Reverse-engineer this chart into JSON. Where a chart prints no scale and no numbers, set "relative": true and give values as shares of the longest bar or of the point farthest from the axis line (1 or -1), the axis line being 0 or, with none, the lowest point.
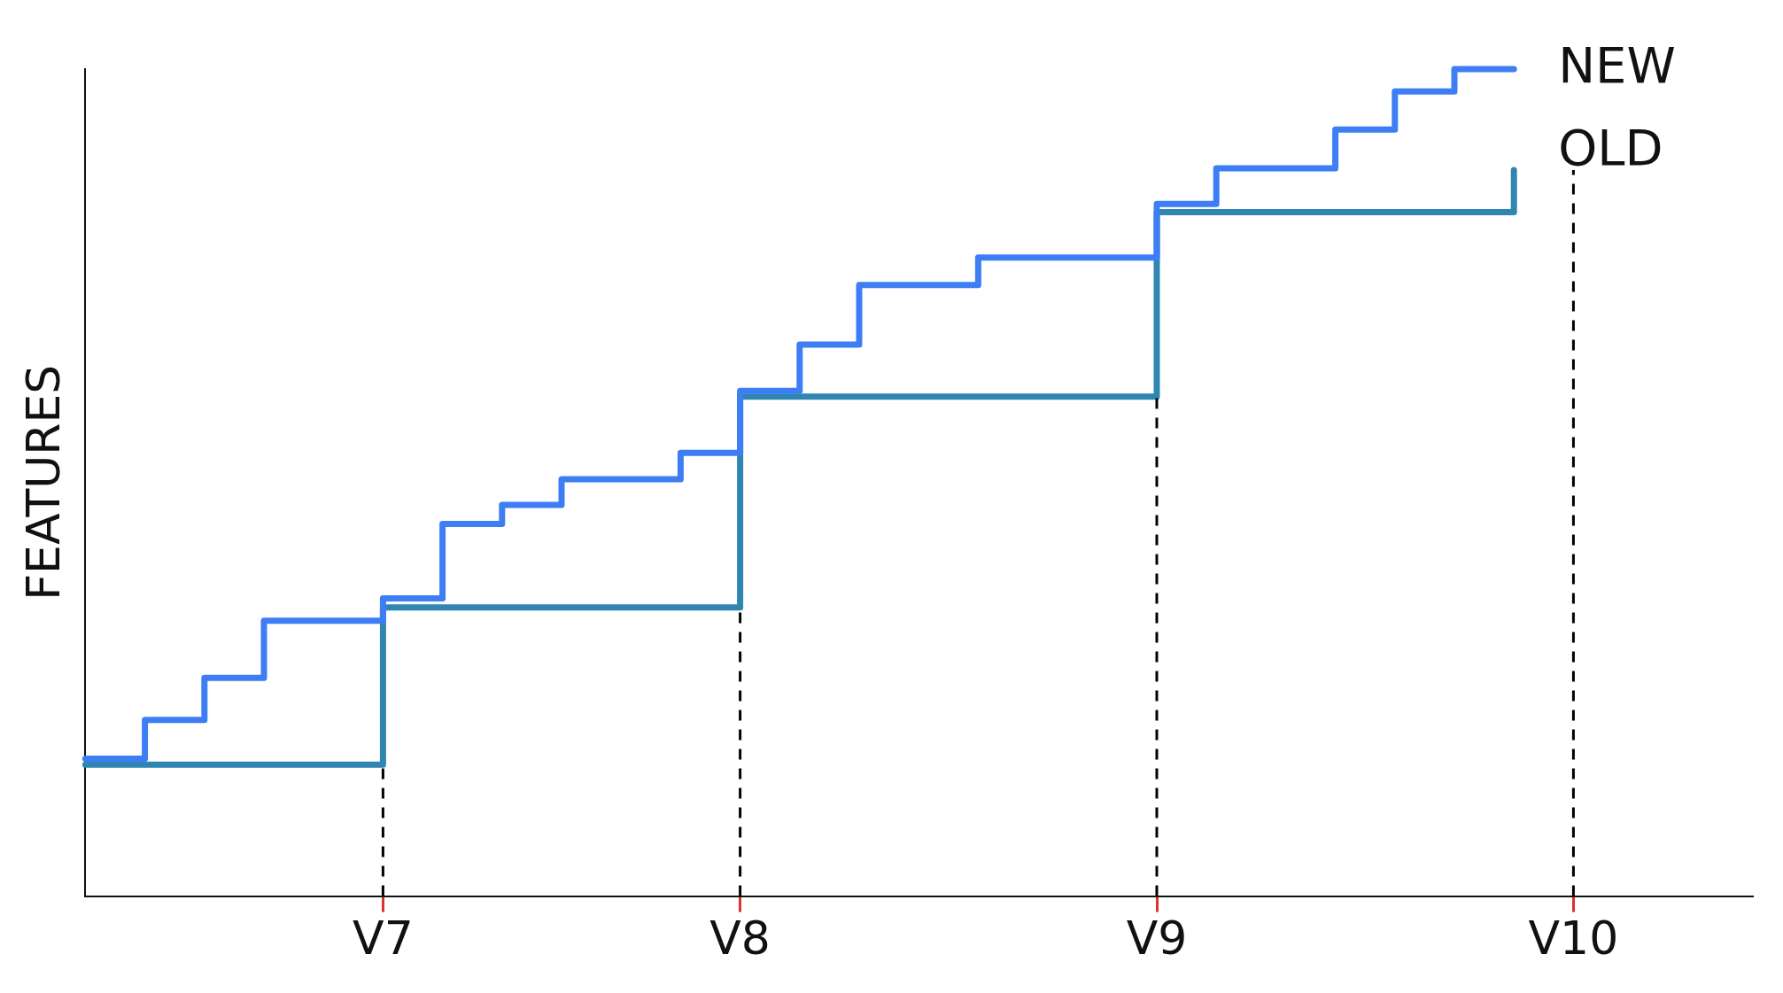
{
  "chart_data": {
    "type": "step",
    "relative": true,
    "ylabel": "FEATURES",
    "categories": [
      null,
      null,
      null,
      null,
      null,
      "V7",
      null,
      null,
      null,
      null,
      null,
      "V8",
      null,
      null,
      null,
      null,
      null,
      null,
      "V9",
      null,
      null,
      null,
      null,
      null,
      null,
      "V10",
      null,
      null,
      null
    ],
    "series": [
      {
        "name": "NEW",
        "color": "#3d7ef5",
        "values": [
          0.166,
          0.213,
          0.264,
          0.333,
          0.333,
          0.36,
          0.45,
          0.473,
          0.504,
          0.504,
          0.536,
          0.611,
          0.667,
          0.739,
          0.739,
          0.772,
          0.772,
          0.772,
          0.837,
          0.88,
          0.88,
          0.927,
          0.973,
          1,
          1,
          null,
          null,
          null,
          null
        ]
      },
      {
        "name": "OLD",
        "color": "#2f86b3",
        "values": [
          0.159,
          0.159,
          0.159,
          0.159,
          0.159,
          0.349,
          0.349,
          0.349,
          0.349,
          0.349,
          0.349,
          0.604,
          0.604,
          0.604,
          0.604,
          0.604,
          0.604,
          0.604,
          0.827,
          0.827,
          0.827,
          0.827,
          0.827,
          0.827,
          0.878,
          null,
          null,
          null,
          null
        ]
      }
    ],
    "ref_lines": [
      {
        "axis": "x",
        "value": "V7",
        "color": "#000000",
        "line_style": "dashed"
      },
      {
        "axis": "x",
        "value": "V8",
        "color": "#000000",
        "line_style": "dashed"
      },
      {
        "axis": "x",
        "value": "V9",
        "color": "#000000",
        "line_style": "dashed"
      },
      {
        "axis": "x",
        "value": "V10",
        "color": "#000000",
        "line_style": "dashed"
      }
    ],
    "grid": false,
    "legend": false
  }
}
